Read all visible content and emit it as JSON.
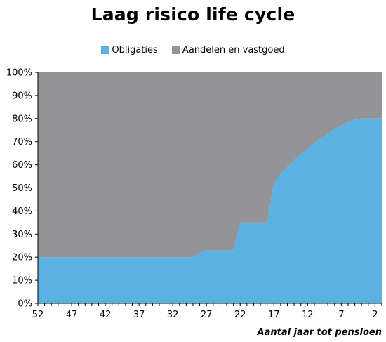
{
  "chart_data": {
    "type": "area",
    "title": "Laag risico life cycle",
    "xlabel": "Aantal jaar tot pensloen",
    "ylabel": "",
    "x": [
      52,
      51,
      50,
      49,
      48,
      47,
      46,
      45,
      44,
      43,
      42,
      41,
      40,
      39,
      38,
      37,
      36,
      35,
      34,
      33,
      32,
      31,
      30,
      29,
      28,
      27,
      26,
      25,
      24,
      23,
      22,
      21,
      20,
      19,
      18,
      17,
      16,
      15,
      14,
      13,
      12,
      11,
      10,
      9,
      8,
      7,
      6,
      5,
      4,
      3,
      2,
      1
    ],
    "xticks": [
      52,
      47,
      42,
      37,
      32,
      27,
      22,
      17,
      12,
      7,
      2
    ],
    "xlim": [
      52,
      1
    ],
    "ylim": [
      0,
      1
    ],
    "yticks": [
      "0%",
      "10%",
      "20%",
      "30%",
      "40%",
      "50%",
      "60%",
      "70%",
      "80%",
      "90%",
      "100%"
    ],
    "stacked": true,
    "legend_position": "top",
    "grid": false,
    "series": [
      {
        "name": "Obligaties",
        "color": "#5bb1e0",
        "values": [
          0.2,
          0.2,
          0.2,
          0.2,
          0.2,
          0.2,
          0.2,
          0.2,
          0.2,
          0.2,
          0.2,
          0.2,
          0.2,
          0.2,
          0.2,
          0.2,
          0.2,
          0.2,
          0.2,
          0.2,
          0.2,
          0.2,
          0.2,
          0.2,
          0.22,
          0.23,
          0.23,
          0.23,
          0.23,
          0.23,
          0.35,
          0.35,
          0.35,
          0.35,
          0.35,
          0.52,
          0.56,
          0.59,
          0.62,
          0.645,
          0.67,
          0.695,
          0.715,
          0.735,
          0.755,
          0.77,
          0.785,
          0.795,
          0.8,
          0.8,
          0.8,
          0.8
        ]
      },
      {
        "name": "Aandelen en vastgoed",
        "color": "#949498",
        "values": [
          0.8,
          0.8,
          0.8,
          0.8,
          0.8,
          0.8,
          0.8,
          0.8,
          0.8,
          0.8,
          0.8,
          0.8,
          0.8,
          0.8,
          0.8,
          0.8,
          0.8,
          0.8,
          0.8,
          0.8,
          0.8,
          0.8,
          0.8,
          0.8,
          0.78,
          0.77,
          0.77,
          0.77,
          0.77,
          0.77,
          0.65,
          0.65,
          0.65,
          0.65,
          0.65,
          0.48,
          0.44,
          0.41,
          0.38,
          0.355,
          0.33,
          0.305,
          0.285,
          0.265,
          0.245,
          0.23,
          0.215,
          0.205,
          0.2,
          0.2,
          0.2,
          0.2
        ]
      }
    ]
  }
}
